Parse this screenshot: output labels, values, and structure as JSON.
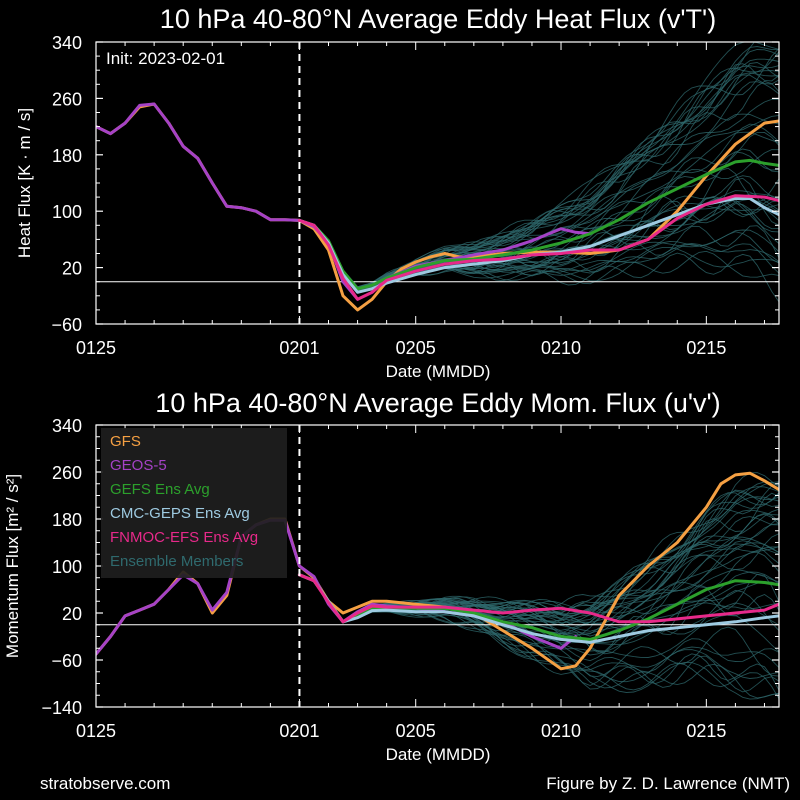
{
  "footer": {
    "left": "stratobserve.com",
    "right": "Figure by Z. D. Lawrence (NMT)"
  },
  "colors": {
    "GFS": "#f5a043",
    "GEOS-5": "#a542c6",
    "GEFS Ens Avg": "#2ca02c",
    "CMC-GEPS Ens Avg": "#9ecae1",
    "FNMOC-EFS Ens Avg": "#e7298a",
    "Ensemble Members": "#2f6a6e"
  },
  "chart_data": [
    {
      "type": "line",
      "title": "10 hPa  40-80°N  Average Eddy Heat Flux (v'T')",
      "xlabel": "Date (MMDD)",
      "ylabel": "Heat Flux  [K · m / s]",
      "annotation": "Init: 2023-02-01",
      "xlim": [
        0,
        23.5
      ],
      "ylim": [
        -60,
        340
      ],
      "x_ticks": [
        {
          "x": 0,
          "label": "0125"
        },
        {
          "x": 7,
          "label": "0201"
        },
        {
          "x": 11,
          "label": "0205"
        },
        {
          "x": 16,
          "label": "0210"
        },
        {
          "x": 21,
          "label": "0215"
        }
      ],
      "y_ticks": [
        -60,
        20,
        100,
        180,
        260,
        340
      ],
      "y_tick_labels": [
        "−60",
        "20",
        "100",
        "180",
        "260",
        "340"
      ],
      "zero_line": 0,
      "init_line_x": 7,
      "series": [
        {
          "name": "GFS",
          "x": [
            0,
            0.5,
            1,
            1.5,
            2,
            2.5,
            3,
            3.5,
            4,
            4.5,
            5,
            5.5,
            6,
            6.5,
            7,
            7.5,
            8,
            8.5,
            9,
            9.5,
            10,
            10.5,
            11,
            11.5,
            12,
            12.5,
            13,
            14,
            15,
            16,
            17,
            18,
            19,
            20,
            21,
            22,
            23,
            23.5
          ],
          "y": [
            220,
            210,
            225,
            248,
            252,
            225,
            192,
            175,
            140,
            107,
            105,
            100,
            88,
            88,
            87,
            75,
            45,
            -20,
            -40,
            -25,
            0,
            18,
            28,
            35,
            40,
            35,
            35,
            40,
            42,
            42,
            40,
            45,
            60,
            100,
            150,
            195,
            225,
            228
          ]
        },
        {
          "name": "GEOS-5",
          "x": [
            0,
            0.5,
            1,
            1.5,
            2,
            2.5,
            3,
            3.5,
            4,
            4.5,
            5,
            5.5,
            6,
            6.5,
            7,
            7.5,
            8,
            8.5,
            9,
            9.5,
            10,
            11,
            12,
            13,
            14,
            15,
            16,
            16.5,
            17
          ],
          "y": [
            220,
            210,
            225,
            250,
            252,
            225,
            192,
            175,
            140,
            107,
            105,
            100,
            88,
            88,
            87,
            78,
            55,
            0,
            -25,
            -15,
            5,
            22,
            30,
            38,
            45,
            58,
            75,
            70,
            68
          ]
        },
        {
          "name": "GEFS Ens Avg",
          "x": [
            7,
            7.5,
            8,
            8.5,
            9,
            9.5,
            10,
            11,
            12,
            13,
            14,
            15,
            16,
            17,
            18,
            19,
            20,
            21,
            22,
            22.5,
            23,
            23.5
          ],
          "y": [
            87,
            80,
            58,
            15,
            -10,
            -5,
            5,
            20,
            30,
            32,
            38,
            45,
            55,
            68,
            88,
            112,
            132,
            152,
            170,
            172,
            168,
            165
          ]
        },
        {
          "name": "CMC-GEPS Ens Avg",
          "x": [
            7,
            7.5,
            8,
            8.5,
            9,
            9.5,
            10,
            11,
            12,
            13,
            14,
            15,
            16,
            17,
            18,
            19,
            20,
            21,
            22,
            22.5,
            23,
            23.5
          ],
          "y": [
            87,
            80,
            55,
            10,
            -15,
            -10,
            -2,
            10,
            20,
            25,
            30,
            38,
            42,
            50,
            65,
            80,
            95,
            110,
            118,
            118,
            105,
            95
          ]
        },
        {
          "name": "FNMOC-EFS Ens Avg",
          "x": [
            7,
            7.5,
            8,
            8.5,
            9,
            9.5,
            10,
            11,
            12,
            13,
            14,
            15,
            16,
            17,
            18,
            19,
            20,
            21,
            22,
            23,
            23.5
          ],
          "y": [
            87,
            80,
            52,
            5,
            -25,
            -15,
            2,
            15,
            25,
            30,
            32,
            38,
            40,
            45,
            45,
            60,
            90,
            110,
            122,
            120,
            115
          ]
        }
      ]
    },
    {
      "type": "line",
      "title": "10 hPa  40-80°N  Average Eddy Mom. Flux (u'v')",
      "xlabel": "Date (MMDD)",
      "ylabel": "Momentum Flux  [m² / s²]",
      "xlim": [
        0,
        23.5
      ],
      "ylim": [
        -140,
        340
      ],
      "x_ticks": [
        {
          "x": 0,
          "label": "0125"
        },
        {
          "x": 7,
          "label": "0201"
        },
        {
          "x": 11,
          "label": "0205"
        },
        {
          "x": 16,
          "label": "0210"
        },
        {
          "x": 21,
          "label": "0215"
        }
      ],
      "y_ticks": [
        -140,
        -60,
        20,
        100,
        180,
        260,
        340
      ],
      "y_tick_labels": [
        "−140",
        "−60",
        "20",
        "100",
        "180",
        "260",
        "340"
      ],
      "zero_line": 0,
      "init_line_x": 7,
      "legend": [
        "GFS",
        "GEOS-5",
        "GEFS Ens Avg",
        "CMC-GEPS Ens Avg",
        "FNMOC-EFS Ens Avg",
        "Ensemble Members"
      ],
      "legend_position": "top-left",
      "series": [
        {
          "name": "GFS",
          "x": [
            0,
            0.5,
            1,
            1.5,
            2,
            2.5,
            3,
            3.5,
            4,
            4.5,
            5,
            5.5,
            6,
            6.5,
            7,
            7.5,
            8,
            8.5,
            9,
            9.5,
            10,
            11,
            12,
            13,
            14,
            15,
            16,
            16.5,
            17,
            18,
            19,
            20,
            21,
            21.5,
            22,
            22.5,
            23,
            23.5
          ],
          "y": [
            -50,
            -20,
            15,
            25,
            35,
            60,
            90,
            70,
            20,
            50,
            150,
            170,
            180,
            180,
            100,
            80,
            40,
            20,
            30,
            40,
            40,
            35,
            30,
            20,
            -10,
            -40,
            -75,
            -70,
            -40,
            50,
            100,
            140,
            200,
            240,
            255,
            258,
            245,
            230
          ]
        },
        {
          "name": "GEOS-5",
          "x": [
            0,
            0.5,
            1,
            1.5,
            2,
            2.5,
            3,
            3.5,
            4,
            4.5,
            5,
            5.5,
            6,
            6.5,
            7,
            7.5,
            8,
            8.5,
            9,
            9.5,
            10,
            11,
            12,
            13,
            14,
            15,
            16,
            16.5
          ],
          "y": [
            -50,
            -20,
            15,
            25,
            35,
            60,
            85,
            70,
            25,
            55,
            150,
            170,
            178,
            178,
            100,
            82,
            35,
            5,
            22,
            35,
            32,
            28,
            22,
            15,
            5,
            -20,
            -40,
            -20
          ]
        },
        {
          "name": "GEFS Ens Avg",
          "x": [
            7,
            7.5,
            8,
            8.5,
            9,
            9.5,
            10,
            11,
            12,
            13,
            14,
            15,
            16,
            17,
            18,
            19,
            20,
            21,
            22,
            23,
            23.5
          ],
          "y": [
            85,
            75,
            40,
            5,
            15,
            28,
            30,
            28,
            28,
            20,
            5,
            -5,
            -20,
            -25,
            -10,
            10,
            35,
            60,
            75,
            72,
            68
          ]
        },
        {
          "name": "CMC-GEPS Ens Avg",
          "x": [
            7,
            7.5,
            8,
            8.5,
            9,
            9.5,
            10,
            11,
            12,
            13,
            14,
            15,
            16,
            17,
            18,
            19,
            20,
            21,
            22,
            23,
            23.5
          ],
          "y": [
            85,
            75,
            40,
            5,
            12,
            24,
            25,
            22,
            22,
            15,
            0,
            -15,
            -25,
            -30,
            -20,
            -10,
            -5,
            0,
            5,
            12,
            15
          ]
        },
        {
          "name": "FNMOC-EFS Ens Avg",
          "x": [
            7,
            7.5,
            8,
            8.5,
            9,
            9.5,
            10,
            11,
            12,
            13,
            14,
            15,
            16,
            17,
            18,
            19,
            20,
            21,
            22,
            23,
            23.5
          ],
          "y": [
            85,
            75,
            38,
            5,
            20,
            32,
            30,
            30,
            30,
            25,
            20,
            25,
            28,
            20,
            5,
            5,
            10,
            15,
            20,
            25,
            35
          ]
        }
      ]
    }
  ]
}
